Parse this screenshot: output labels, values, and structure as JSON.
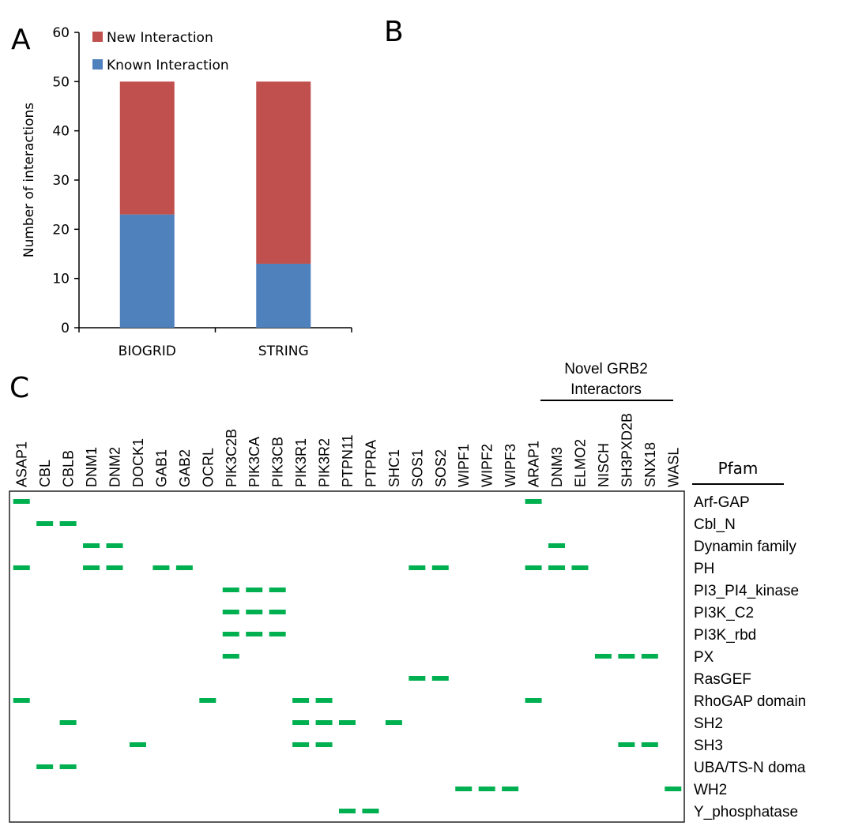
{
  "panels": {
    "a": "A",
    "b": "B",
    "c": "C"
  },
  "chart_data": [
    {
      "type": "bar",
      "stacked": true,
      "categories": [
        "BIOGRID",
        "STRING"
      ],
      "series": [
        {
          "name": "Known Interaction",
          "values": [
            23,
            13
          ],
          "color": "#4f81bd"
        },
        {
          "name": "New Interaction",
          "values": [
            27,
            37
          ],
          "color": "#c0504d"
        }
      ],
      "ylabel": "Number of interactions",
      "ylim": [
        0,
        60
      ],
      "yticks": [
        0,
        10,
        20,
        30,
        40,
        50,
        60
      ],
      "legend": "top-left",
      "grid": false
    },
    {
      "type": "heatmap",
      "columns": [
        "ASAP1",
        "CBL",
        "CBLB",
        "DNM1",
        "DNM2",
        "DOCK1",
        "GAB1",
        "GAB2",
        "OCRL",
        "PIK3C2B",
        "PIK3CA",
        "PIK3CB",
        "PIK3R1",
        "PIK3R2",
        "PTPN11",
        "PTPRA",
        "SHC1",
        "SOS1",
        "SOS2",
        "WIPF1",
        "WIPF2",
        "WIPF3",
        "ARAP1",
        "DNM3",
        "ELMO2",
        "NISCH",
        "SH3PXD2B",
        "SNX18",
        "WASL"
      ],
      "rows": [
        "Arf-GAP",
        "Cbl_N",
        "Dynamin family",
        "PH",
        "PI3_PI4_kinase",
        "PI3K_C2",
        "PI3K_rbd",
        "PX",
        "RasGEF",
        "RhoGAP domain",
        "SH2",
        "SH3",
        "UBA/TS-N doma",
        "WH2",
        "Y_phosphatase"
      ],
      "row_title": "Pfam",
      "group_label": [
        "Novel GRB2",
        "Interactors"
      ],
      "group_columns": [
        "ARAP1",
        "DNM3",
        "ELMO2",
        "NISCH",
        "SH3PXD2B",
        "SNX18",
        "WASL"
      ],
      "mark_color": "#00b050",
      "present": {
        "Arf-GAP": [
          "ASAP1",
          "ARAP1"
        ],
        "Cbl_N": [
          "CBL",
          "CBLB"
        ],
        "Dynamin family": [
          "DNM1",
          "DNM2",
          "DNM3"
        ],
        "PH": [
          "ASAP1",
          "DNM1",
          "DNM2",
          "GAB1",
          "GAB2",
          "SOS1",
          "SOS2",
          "ARAP1",
          "DNM3",
          "ELMO2"
        ],
        "PI3_PI4_kinase": [
          "PIK3C2B",
          "PIK3CA",
          "PIK3CB"
        ],
        "PI3K_C2": [
          "PIK3C2B",
          "PIK3CA",
          "PIK3CB"
        ],
        "PI3K_rbd": [
          "PIK3C2B",
          "PIK3CA",
          "PIK3CB"
        ],
        "PX": [
          "PIK3C2B",
          "NISCH",
          "SH3PXD2B",
          "SNX18"
        ],
        "RasGEF": [
          "SOS1",
          "SOS2"
        ],
        "RhoGAP domain": [
          "ASAP1",
          "OCRL",
          "PIK3R1",
          "PIK3R2",
          "ARAP1"
        ],
        "SH2": [
          "CBLB",
          "PIK3R1",
          "PIK3R2",
          "PTPN11",
          "SHC1"
        ],
        "SH3": [
          "DOCK1",
          "PIK3R1",
          "PIK3R2",
          "SH3PXD2B",
          "SNX18"
        ],
        "UBA/TS-N doma": [
          "CBL",
          "CBLB"
        ],
        "WH2": [
          "WIPF1",
          "WIPF2",
          "WIPF3",
          "WASL"
        ],
        "Y_phosphatase": [
          "PTPN11",
          "PTPRA"
        ]
      }
    }
  ]
}
